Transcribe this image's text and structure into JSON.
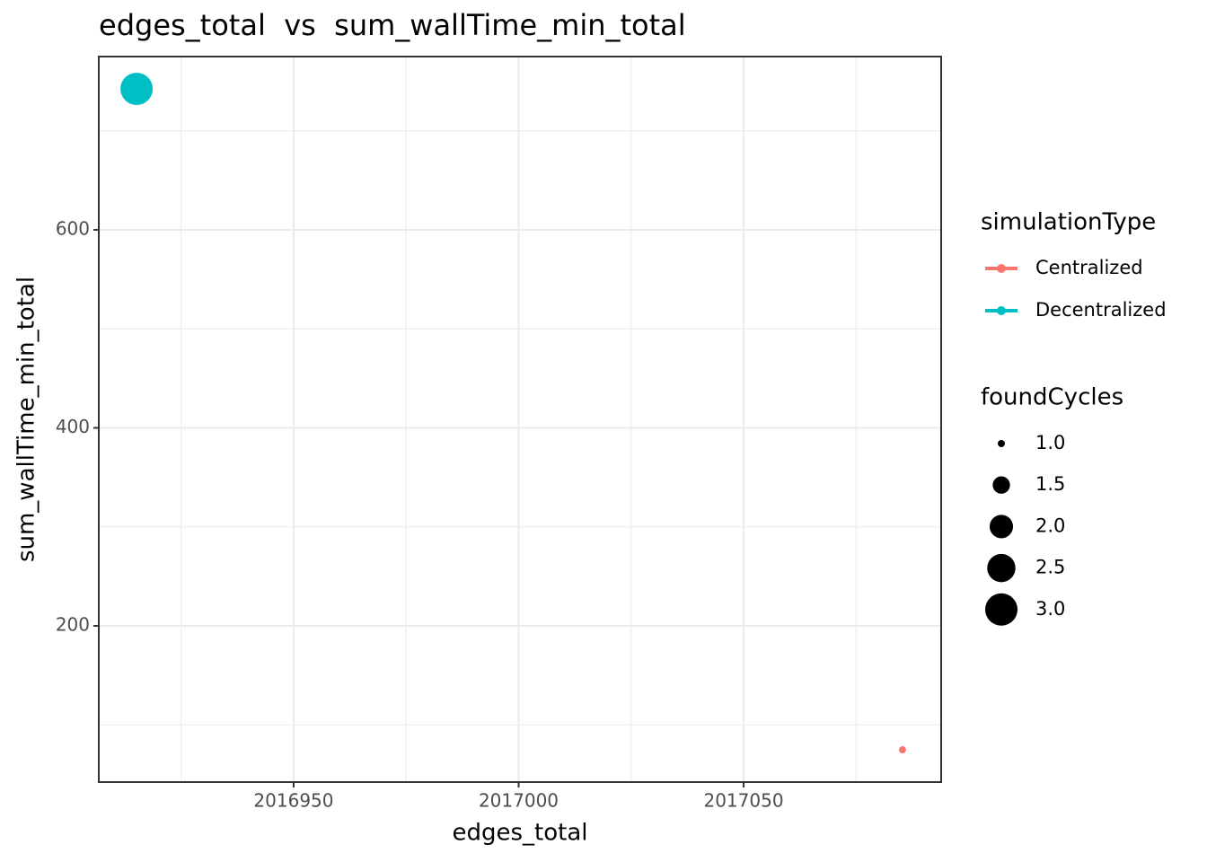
{
  "chart_data": {
    "type": "scatter",
    "title": "edges_total  vs  sum_wallTime_min_total",
    "x_label": "edges_total",
    "y_label": "sum_wallTime_min_total",
    "xlim": [
      2016906.7,
      2017093.9
    ],
    "ylim": [
      42.2,
      775
    ],
    "xticks": [
      2016950,
      2017000,
      2017050
    ],
    "yticks": [
      200,
      400,
      600
    ],
    "x_minor_ticks": [
      2016925,
      2016975,
      2017025,
      2017075
    ],
    "y_minor_ticks": [
      100,
      300,
      500,
      700
    ],
    "grid": true,
    "legend_position": "right",
    "color_legend_title": "simulationType",
    "size_legend_title": "foundCycles",
    "size_breaks": [
      {
        "value": 1,
        "label": "1.0"
      },
      {
        "value": 1.5,
        "label": "1.5"
      },
      {
        "value": 2,
        "label": "2.0"
      },
      {
        "value": 2.5,
        "label": "2.5"
      },
      {
        "value": 3,
        "label": "3.0"
      }
    ],
    "series": [
      {
        "name": "Centralized",
        "color": "#F8766D",
        "x": [
          2017085.3
        ],
        "values": [
          74.8
        ],
        "sizes": [
          1
        ]
      },
      {
        "name": "Decentralized",
        "color": "#00BFC4",
        "x": [
          2016915.1
        ],
        "values": [
          742.4
        ],
        "sizes": [
          3
        ]
      }
    ]
  }
}
